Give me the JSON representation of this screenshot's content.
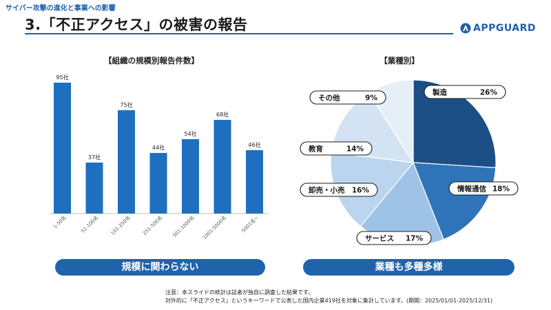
{
  "header": {
    "caption": "サイバー攻撃の進化と事業への影響",
    "title": "3.「不正アクセス」の被害の報告",
    "logo_text": "APPGUARD",
    "accent_color": "#1f5fa8"
  },
  "chart_data": [
    {
      "type": "bar",
      "title": "【組織の規模別報告件数】",
      "categories": [
        "1-50名",
        "51-100名",
        "101-250名",
        "251-500名",
        "501-1000名",
        "1001-5000名",
        "5001名~"
      ],
      "values": [
        95,
        37,
        75,
        44,
        54,
        68,
        46
      ],
      "value_labels": [
        "95社",
        "37社",
        "75社",
        "44社",
        "54社",
        "68社",
        "46社"
      ],
      "ylim": [
        0,
        100
      ],
      "grid": false,
      "color": "#1f6fc0"
    },
    {
      "type": "pie",
      "title": "【業種別】",
      "slices": [
        {
          "label": "製造",
          "pct": "26%",
          "value": 26,
          "color": "#1c4f86"
        },
        {
          "label": "情報通信",
          "pct": "18%",
          "value": 18,
          "color": "#2f74b8"
        },
        {
          "label": "サービス",
          "pct": "17%",
          "value": 17,
          "color": "#9fc3e6"
        },
        {
          "label": "卸売・小売",
          "pct": "16%",
          "value": 16,
          "color": "#bcd5ee"
        },
        {
          "label": "教育",
          "pct": "14%",
          "value": 14,
          "color": "#d3e3f4"
        },
        {
          "label": "その他",
          "pct": "9%",
          "value": 9,
          "color": "#e6eff8"
        }
      ]
    }
  ],
  "pills": {
    "left": "規模に関わらない",
    "right": "業種も多種多様"
  },
  "notes": {
    "line1": "注意：本スライドの統計は話者が独自に調査した結果です。",
    "line2": "対外的に「不正アクセス」というキーワードで公表した国内企業419社を対象に集計しています。(期間：2025/01/01-2025/12/31)"
  }
}
